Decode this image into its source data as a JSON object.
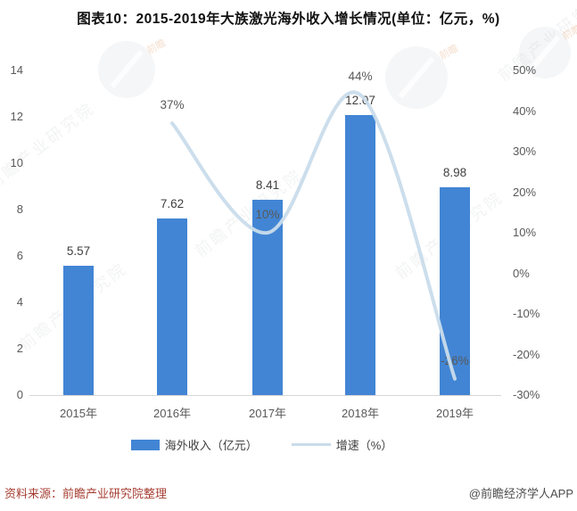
{
  "title": "图表10：2015-2019年大族激光海外收入增长情况(单位：亿元，%)",
  "footer": {
    "source_left": "资料来源：前瞻产业研究院整理",
    "source_right": "@前瞻经济学人APP"
  },
  "watermarks": {
    "diagonal_text": "前瞻产业研究院",
    "logo_text": "前瞻"
  },
  "colors": {
    "bar": "#4285d4",
    "line": "#c9dceb",
    "axis-text": "#595959",
    "source-red": "#a63e32"
  },
  "chart_data": {
    "type": "bar+line",
    "title": "图表10：2015-2019年大族激光海外收入增长情况(单位：亿元，%)",
    "categories": [
      "2015年",
      "2016年",
      "2017年",
      "2018年",
      "2019年"
    ],
    "series": [
      {
        "name": "海外收入（亿元）",
        "type": "bar",
        "axis": "left",
        "values": [
          5.57,
          7.62,
          8.41,
          12.07,
          8.98
        ],
        "labels": [
          "5.57",
          "7.62",
          "8.41",
          "12.07",
          "8.98"
        ]
      },
      {
        "name": "增速（%）",
        "type": "line",
        "axis": "right",
        "values": [
          null,
          37,
          10,
          44,
          -26
        ],
        "labels": [
          null,
          "37%",
          "10%",
          "44%",
          "-26%"
        ]
      }
    ],
    "left_axis": {
      "min": 0,
      "max": 14,
      "step": 2,
      "ticks": [
        "0",
        "2",
        "4",
        "6",
        "8",
        "10",
        "12",
        "14"
      ]
    },
    "right_axis": {
      "min": -30,
      "max": 50,
      "step": 10,
      "ticks": [
        "-30%",
        "-20%",
        "-10%",
        "0%",
        "10%",
        "20%",
        "30%",
        "40%",
        "50%"
      ]
    },
    "legend": [
      "海外收入（亿元）",
      "增速（%）"
    ],
    "legend_position": "bottom",
    "grid": false
  }
}
